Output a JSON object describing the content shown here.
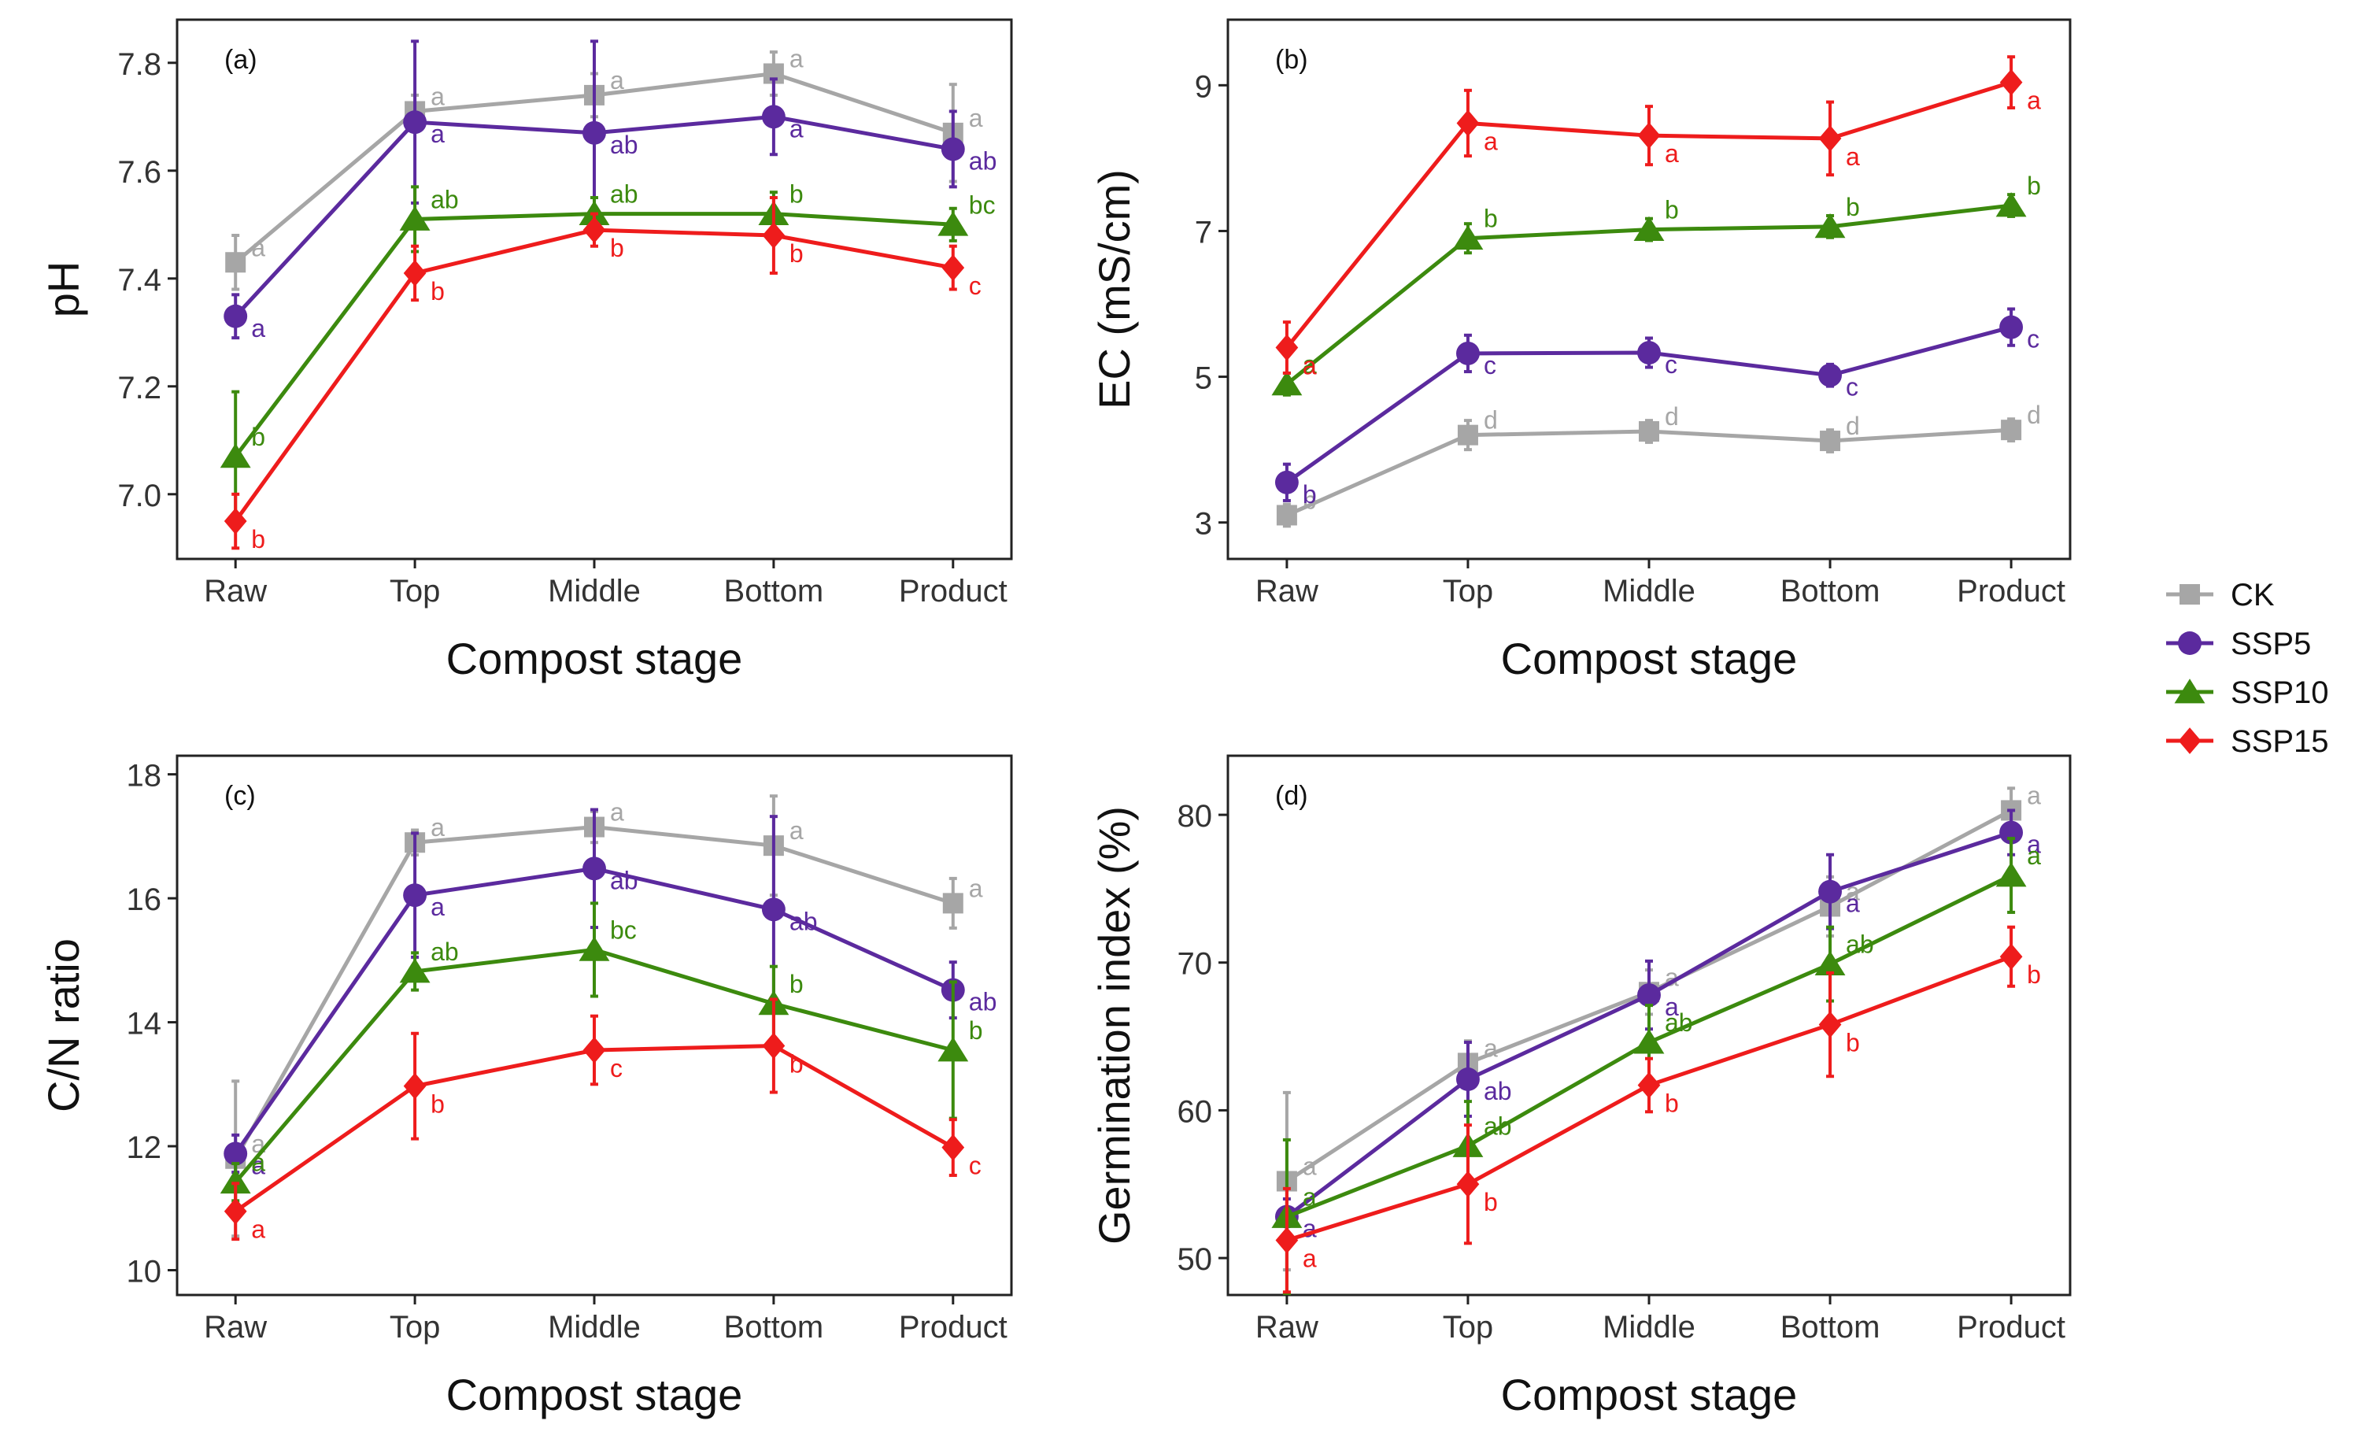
{
  "figure": {
    "legend": {
      "items": [
        {
          "name": "CK",
          "color": "#a6a6a6",
          "marker": "square"
        },
        {
          "name": "SSP5",
          "color": "#5b2a9e",
          "marker": "circle"
        },
        {
          "name": "SSP10",
          "color": "#3c8a0e",
          "marker": "triangle"
        },
        {
          "name": "SSP15",
          "color": "#ee1c1c",
          "marker": "diamond"
        }
      ]
    }
  },
  "chart_data": [
    {
      "type": "line",
      "panel_label": "(a)",
      "title": "",
      "xlabel": "Compost stage",
      "ylabel": "pH",
      "categories": [
        "Raw",
        "Top",
        "Middle",
        "Bottom",
        "Product"
      ],
      "ylim": [
        6.88,
        7.88
      ],
      "yticks": [
        7.0,
        7.2,
        7.4,
        7.6,
        7.8
      ],
      "ytick_labels": [
        "7.0",
        "7.2",
        "7.4",
        "7.6",
        "7.8"
      ],
      "series": [
        {
          "name": "CK",
          "values": [
            7.43,
            7.71,
            7.74,
            7.78,
            7.67
          ],
          "errors": [
            0.05,
            0.03,
            0.04,
            0.04,
            0.09
          ],
          "letters": [
            "a",
            "a",
            "a",
            "a",
            "a"
          ]
        },
        {
          "name": "SSP5",
          "values": [
            7.33,
            7.69,
            7.67,
            7.7,
            7.64
          ],
          "errors": [
            0.04,
            0.15,
            0.17,
            0.07,
            0.07
          ],
          "letters": [
            "a",
            "a",
            "ab",
            "a",
            "ab"
          ]
        },
        {
          "name": "SSP10",
          "values": [
            7.07,
            7.51,
            7.52,
            7.52,
            7.5
          ],
          "errors": [
            0.12,
            0.06,
            0.03,
            0.04,
            0.03
          ],
          "letters": [
            "b",
            "ab",
            "ab",
            "b",
            "bc"
          ]
        },
        {
          "name": "SSP15",
          "values": [
            6.95,
            7.41,
            7.49,
            7.48,
            7.42
          ],
          "errors": [
            0.05,
            0.05,
            0.03,
            0.07,
            0.04
          ],
          "letters": [
            "b",
            "b",
            "b",
            "b",
            "c"
          ]
        }
      ]
    },
    {
      "type": "line",
      "panel_label": "(b)",
      "title": "",
      "xlabel": "Compost stage",
      "ylabel": "EC (mS/cm)",
      "categories": [
        "Raw",
        "Top",
        "Middle",
        "Bottom",
        "Product"
      ],
      "ylim": [
        2.5,
        9.9
      ],
      "yticks": [
        3,
        5,
        7,
        9
      ],
      "ytick_labels": [
        "3",
        "5",
        "7",
        "9"
      ],
      "series": [
        {
          "name": "CK",
          "values": [
            3.1,
            4.2,
            4.25,
            4.12,
            4.27
          ],
          "errors": [
            0.15,
            0.2,
            0.15,
            0.15,
            0.15
          ],
          "letters": [
            "b",
            "d",
            "d",
            "d",
            "d"
          ]
        },
        {
          "name": "SSP5",
          "values": [
            3.55,
            5.32,
            5.33,
            5.02,
            5.68
          ],
          "errors": [
            0.25,
            0.25,
            0.2,
            0.15,
            0.25
          ],
          "letters": [
            "b",
            "c",
            "c",
            "c",
            "c"
          ]
        },
        {
          "name": "SSP10",
          "values": [
            4.9,
            6.9,
            7.02,
            7.06,
            7.35
          ],
          "errors": [
            0.15,
            0.2,
            0.15,
            0.15,
            0.15
          ],
          "letters": [
            "a",
            "b",
            "b",
            "b",
            "b"
          ]
        },
        {
          "name": "SSP15",
          "values": [
            5.4,
            8.48,
            8.31,
            8.27,
            9.04
          ],
          "errors": [
            0.35,
            0.45,
            0.4,
            0.5,
            0.35
          ],
          "letters": [
            "a",
            "a",
            "a",
            "a",
            "a"
          ]
        }
      ]
    },
    {
      "type": "line",
      "panel_label": "(c)",
      "title": "",
      "xlabel": "Compost stage",
      "ylabel": "C/N ratio",
      "categories": [
        "Raw",
        "Top",
        "Middle",
        "Bottom",
        "Product"
      ],
      "ylim": [
        9.6,
        18.3
      ],
      "yticks": [
        10,
        12,
        14,
        16,
        18
      ],
      "ytick_labels": [
        "10",
        "12",
        "14",
        "16",
        "18"
      ],
      "series": [
        {
          "name": "CK",
          "values": [
            11.8,
            16.9,
            17.15,
            16.85,
            15.92
          ],
          "errors": [
            1.25,
            0.2,
            0.25,
            0.8,
            0.4
          ],
          "letters": [
            "a",
            "a",
            "a",
            "a",
            "a"
          ]
        },
        {
          "name": "SSP5",
          "values": [
            11.88,
            16.05,
            16.48,
            15.82,
            14.52
          ],
          "errors": [
            0.3,
            1.0,
            0.95,
            1.5,
            0.45
          ],
          "letters": [
            "a",
            "a",
            "ab",
            "ab",
            "ab"
          ]
        },
        {
          "name": "SSP10",
          "values": [
            11.42,
            14.82,
            15.17,
            14.3,
            13.55
          ],
          "errors": [
            0.3,
            0.3,
            0.75,
            0.6,
            1.1
          ],
          "letters": [
            "a",
            "ab",
            "bc",
            "b",
            "b"
          ]
        },
        {
          "name": "SSP15",
          "values": [
            10.95,
            12.97,
            13.55,
            13.62,
            11.98
          ],
          "errors": [
            0.45,
            0.85,
            0.55,
            0.75,
            0.45
          ],
          "letters": [
            "a",
            "b",
            "c",
            "b",
            "c"
          ]
        }
      ]
    },
    {
      "type": "line",
      "panel_label": "(d)",
      "title": "",
      "xlabel": "Compost stage",
      "ylabel": "Germination index (%)",
      "categories": [
        "Raw",
        "Top",
        "Middle",
        "Bottom",
        "Product"
      ],
      "ylim": [
        47.5,
        84.0
      ],
      "yticks": [
        50,
        60,
        70,
        80
      ],
      "ytick_labels": [
        "50",
        "60",
        "70",
        "80"
      ],
      "series": [
        {
          "name": "CK",
          "values": [
            55.2,
            63.2,
            68.0,
            73.8,
            80.3
          ],
          "errors": [
            6.0,
            1.5,
            1.5,
            2.0,
            1.5
          ],
          "letters": [
            "a",
            "a",
            "a",
            "a",
            "a"
          ]
        },
        {
          "name": "SSP5",
          "values": [
            52.8,
            62.1,
            67.8,
            74.8,
            78.8
          ],
          "errors": [
            1.2,
            2.5,
            2.3,
            2.5,
            1.5
          ],
          "letters": [
            "a",
            "ab",
            "a",
            "a",
            "a"
          ]
        },
        {
          "name": "SSP10",
          "values": [
            52.8,
            57.6,
            64.6,
            69.9,
            75.9
          ],
          "errors": [
            5.2,
            3.0,
            2.5,
            2.5,
            2.5
          ],
          "letters": [
            "a",
            "ab",
            "ab",
            "ab",
            "a"
          ]
        },
        {
          "name": "SSP15",
          "values": [
            51.2,
            55.0,
            61.7,
            65.8,
            70.4
          ],
          "errors": [
            3.5,
            4.0,
            1.8,
            3.5,
            2.0
          ],
          "letters": [
            "a",
            "b",
            "b",
            "b",
            "b"
          ]
        }
      ]
    }
  ]
}
